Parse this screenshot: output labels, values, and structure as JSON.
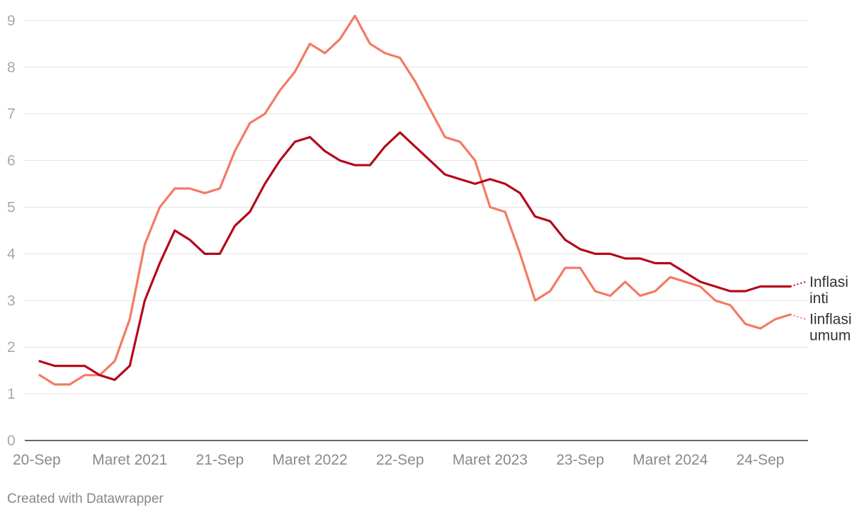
{
  "chart_data": {
    "type": "line",
    "ylim": [
      0,
      9
    ],
    "yticks": [
      "0",
      "1",
      "2",
      "3",
      "4",
      "5",
      "6",
      "7",
      "8",
      "9"
    ],
    "xticks": [
      {
        "index": 0,
        "label": "20-Sep"
      },
      {
        "index": 6,
        "label": "Maret 2021"
      },
      {
        "index": 12,
        "label": "21-Sep"
      },
      {
        "index": 18,
        "label": "Maret 2022"
      },
      {
        "index": 24,
        "label": "22-Sep"
      },
      {
        "index": 30,
        "label": "Maret 2023"
      },
      {
        "index": 36,
        "label": "23-Sep"
      },
      {
        "index": 42,
        "label": "Maret 2024"
      },
      {
        "index": 48,
        "label": "24-Sep"
      }
    ],
    "grid": true,
    "series": [
      {
        "name": "Inflasi inti",
        "label_lines": [
          "Inflasi",
          "inti"
        ],
        "color": "#b5091c",
        "values": [
          1.7,
          1.6,
          1.6,
          1.6,
          1.4,
          1.3,
          1.6,
          3.0,
          3.8,
          4.5,
          4.3,
          4.0,
          4.0,
          4.6,
          4.9,
          5.5,
          6.0,
          6.4,
          6.5,
          6.2,
          6.0,
          5.9,
          5.9,
          6.3,
          6.6,
          6.3,
          6.0,
          5.7,
          5.6,
          5.5,
          5.6,
          5.5,
          5.3,
          4.8,
          4.7,
          4.3,
          4.1,
          4.0,
          4.0,
          3.9,
          3.9,
          3.8,
          3.8,
          3.6,
          3.4,
          3.3,
          3.2,
          3.2,
          3.3,
          3.3,
          3.3,
          3.4
        ]
      },
      {
        "name": "Iinflasi umum",
        "label_lines": [
          "Iinflasi",
          "umum"
        ],
        "color": "#f47a64",
        "values": [
          1.4,
          1.2,
          1.2,
          1.4,
          1.4,
          1.7,
          2.6,
          4.2,
          5.0,
          5.4,
          5.4,
          5.3,
          5.4,
          6.2,
          6.8,
          7.0,
          7.5,
          7.9,
          8.5,
          8.3,
          8.6,
          9.1,
          8.5,
          8.3,
          8.2,
          7.7,
          7.1,
          6.5,
          6.4,
          6.0,
          5.0,
          4.9,
          4.0,
          3.0,
          3.2,
          3.7,
          3.7,
          3.2,
          3.1,
          3.4,
          3.1,
          3.2,
          3.5,
          3.4,
          3.3,
          3.0,
          2.9,
          2.5,
          2.4,
          2.6,
          2.7,
          2.6
        ]
      }
    ]
  },
  "footer": {
    "credit": "Created with Datawrapper"
  }
}
